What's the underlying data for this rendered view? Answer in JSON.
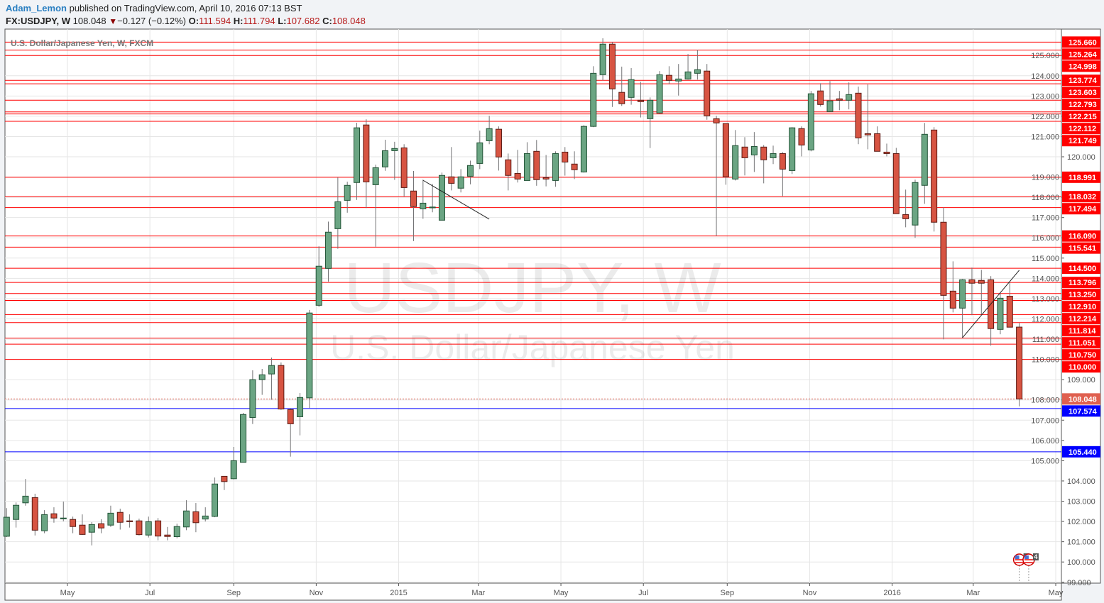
{
  "header": {
    "author": "Adam_Lemon",
    "published": "published on TradingView.com, April 10, 2016 07:13 BST",
    "symbol": "FX:USDJPY, W",
    "last": "108.048",
    "change": "−0.127 (−0.12%)",
    "o_label": "O:",
    "o": "111.594",
    "h_label": "H:",
    "h": "111.794",
    "l_label": "L:",
    "l": "107.682",
    "c_label": "C:",
    "c": "108.048",
    "down_icon": "triangle-down"
  },
  "legend": "U.S. Dollar/Japanese Yen, W, FXCM",
  "watermark": {
    "line1": "USDJPY, W",
    "line2": "U.S. Dollar/Japanese Yen"
  },
  "colors": {
    "up": "#6ba583",
    "up_border": "#225437",
    "down": "#d75442",
    "down_border": "#5b1a13",
    "wick": "#737375",
    "level": "#ff0000",
    "support": "#0000ff",
    "last_price": "#e0604f"
  },
  "chart_data": {
    "type": "candlestick",
    "interval": "weekly",
    "y_scale": "linear",
    "ylim": [
      98.9,
      125.9
    ],
    "y_ticks": [
      "99.000",
      "100.000",
      "101.000",
      "102.000",
      "103.000",
      "104.000",
      "105.000",
      "106.000",
      "107.000",
      "108.000",
      "109.000",
      "110.000",
      "111.000",
      "112.000",
      "113.000",
      "114.000",
      "115.000",
      "116.000",
      "117.000",
      "118.000",
      "119.000",
      "120.000",
      "121.000",
      "122.000",
      "123.000",
      "124.000",
      "125.000"
    ],
    "x_ticks": [
      {
        "date": "2014-05-01",
        "label": "May"
      },
      {
        "date": "2014-07-01",
        "label": "Jul"
      },
      {
        "date": "2014-09-01",
        "label": "Sep"
      },
      {
        "date": "2014-11-01",
        "label": "Nov"
      },
      {
        "date": "2015-01-01",
        "label": "2015"
      },
      {
        "date": "2015-03-01",
        "label": "Mar"
      },
      {
        "date": "2015-05-01",
        "label": "May"
      },
      {
        "date": "2015-07-01",
        "label": "Jul"
      },
      {
        "date": "2015-09-01",
        "label": "Sep"
      },
      {
        "date": "2015-11-01",
        "label": "Nov"
      },
      {
        "date": "2016-01-01",
        "label": "2016"
      },
      {
        "date": "2016-03-01",
        "label": "Mar"
      },
      {
        "date": "2016-05-01",
        "label": "May"
      }
    ],
    "grid": true,
    "columns": [
      "date",
      "open",
      "high",
      "low",
      "close"
    ],
    "candles": [
      [
        "2014-03-17",
        101.27,
        102.66,
        101.23,
        102.21
      ],
      [
        "2014-03-24",
        102.1,
        102.94,
        101.7,
        102.8
      ],
      [
        "2014-03-31",
        102.92,
        104.1,
        102.78,
        103.25
      ],
      [
        "2014-04-07",
        103.18,
        103.37,
        101.31,
        101.57
      ],
      [
        "2014-04-14",
        101.54,
        102.56,
        101.42,
        102.34
      ],
      [
        "2014-04-21",
        102.38,
        102.7,
        101.94,
        102.17
      ],
      [
        "2014-04-28",
        102.13,
        102.98,
        102.01,
        102.17
      ],
      [
        "2014-05-05",
        102.1,
        102.24,
        101.42,
        101.75
      ],
      [
        "2014-05-12",
        101.82,
        102.35,
        101.33,
        101.36
      ],
      [
        "2014-05-19",
        101.47,
        101.97,
        100.82,
        101.85
      ],
      [
        "2014-05-26",
        101.89,
        102.11,
        101.42,
        101.68
      ],
      [
        "2014-06-02",
        101.82,
        102.78,
        101.73,
        102.41
      ],
      [
        "2014-06-09",
        102.45,
        102.63,
        101.6,
        101.96
      ],
      [
        "2014-06-16",
        102.03,
        102.35,
        101.7,
        101.99
      ],
      [
        "2014-06-23",
        102.03,
        102.14,
        101.31,
        101.35
      ],
      [
        "2014-06-30",
        101.33,
        102.24,
        101.21,
        101.99
      ],
      [
        "2014-07-07",
        102.03,
        102.17,
        101.07,
        101.28
      ],
      [
        "2014-07-14",
        101.33,
        101.73,
        101.07,
        101.26
      ],
      [
        "2014-07-21",
        101.25,
        101.89,
        101.17,
        101.75
      ],
      [
        "2014-07-28",
        101.73,
        103.05,
        101.57,
        102.52
      ],
      [
        "2014-08-04",
        102.48,
        102.91,
        101.47,
        101.94
      ],
      [
        "2014-08-11",
        102.12,
        102.7,
        102.0,
        102.27
      ],
      [
        "2014-08-18",
        102.25,
        104.17,
        102.21,
        103.85
      ],
      [
        "2014-08-25",
        104.23,
        104.23,
        103.55,
        103.97
      ],
      [
        "2014-09-01",
        104.11,
        105.68,
        104.08,
        105.0
      ],
      [
        "2014-09-08",
        104.92,
        107.36,
        104.92,
        107.28
      ],
      [
        "2014-09-15",
        107.13,
        109.46,
        106.81,
        109.0
      ],
      [
        "2014-09-22",
        109.0,
        109.53,
        108.25,
        109.24
      ],
      [
        "2014-09-29",
        109.28,
        110.09,
        108.01,
        109.7
      ],
      [
        "2014-10-06",
        109.7,
        109.85,
        107.51,
        107.55
      ],
      [
        "2014-10-13",
        107.52,
        107.6,
        105.2,
        106.82
      ],
      [
        "2014-10-20",
        107.17,
        108.34,
        106.25,
        108.12
      ],
      [
        "2014-10-27",
        108.1,
        112.44,
        107.6,
        112.29
      ],
      [
        "2014-11-03",
        112.67,
        115.58,
        112.59,
        114.6
      ],
      [
        "2014-11-10",
        114.49,
        116.8,
        113.84,
        116.28
      ],
      [
        "2014-11-17",
        116.45,
        118.98,
        115.46,
        117.78
      ],
      [
        "2014-11-24",
        117.85,
        118.77,
        117.24,
        118.59
      ],
      [
        "2014-12-01",
        118.73,
        121.68,
        117.87,
        121.43
      ],
      [
        "2014-12-08",
        121.57,
        121.85,
        117.47,
        118.76
      ],
      [
        "2014-12-15",
        118.62,
        119.61,
        115.56,
        119.46
      ],
      [
        "2014-12-22",
        119.5,
        120.84,
        119.31,
        120.3
      ],
      [
        "2014-12-29",
        120.3,
        120.74,
        118.86,
        120.41
      ],
      [
        "2015-01-05",
        120.44,
        120.62,
        118.05,
        118.48
      ],
      [
        "2015-01-12",
        118.31,
        119.3,
        115.84,
        117.54
      ],
      [
        "2015-01-19",
        117.43,
        118.87,
        116.94,
        117.71
      ],
      [
        "2015-01-26",
        117.48,
        118.66,
        117.26,
        117.52
      ],
      [
        "2015-02-02",
        116.87,
        119.22,
        116.87,
        119.08
      ],
      [
        "2015-02-09",
        119.01,
        120.48,
        118.34,
        118.69
      ],
      [
        "2015-02-16",
        118.45,
        119.39,
        118.24,
        119.01
      ],
      [
        "2015-02-23",
        119.04,
        119.81,
        118.64,
        119.57
      ],
      [
        "2015-03-02",
        119.67,
        121.29,
        119.39,
        120.69
      ],
      [
        "2015-03-09",
        120.79,
        122.02,
        120.62,
        121.39
      ],
      [
        "2015-03-16",
        121.36,
        121.5,
        119.32,
        119.99
      ],
      [
        "2015-03-23",
        119.85,
        120.16,
        118.34,
        119.08
      ],
      [
        "2015-03-30",
        119.18,
        120.34,
        118.73,
        118.9
      ],
      [
        "2015-04-06",
        118.83,
        120.72,
        118.83,
        120.16
      ],
      [
        "2015-04-13",
        120.27,
        120.83,
        118.57,
        118.87
      ],
      [
        "2015-04-20",
        118.97,
        120.09,
        118.54,
        118.9
      ],
      [
        "2015-04-27",
        118.83,
        120.27,
        118.52,
        120.16
      ],
      [
        "2015-05-04",
        120.23,
        120.48,
        119.07,
        119.74
      ],
      [
        "2015-05-11",
        119.64,
        120.27,
        118.9,
        119.36
      ],
      [
        "2015-05-18",
        119.25,
        121.56,
        119.22,
        121.5
      ],
      [
        "2015-05-25",
        121.5,
        124.47,
        121.46,
        124.12
      ],
      [
        "2015-06-01",
        124.05,
        125.85,
        123.77,
        125.56
      ],
      [
        "2015-06-08",
        125.56,
        125.66,
        122.46,
        123.35
      ],
      [
        "2015-06-15",
        123.18,
        124.45,
        122.51,
        122.62
      ],
      [
        "2015-06-22",
        122.93,
        124.38,
        122.57,
        123.81
      ],
      [
        "2015-06-29",
        122.79,
        123.7,
        121.94,
        122.72
      ],
      [
        "2015-07-06",
        121.88,
        122.93,
        120.43,
        122.79
      ],
      [
        "2015-07-13",
        122.16,
        124.23,
        122.13,
        124.05
      ],
      [
        "2015-07-20",
        124.02,
        124.47,
        123.58,
        123.77
      ],
      [
        "2015-07-27",
        123.74,
        124.58,
        123.02,
        123.84
      ],
      [
        "2015-08-03",
        123.84,
        125.07,
        123.81,
        124.19
      ],
      [
        "2015-08-10",
        124.12,
        125.28,
        123.81,
        124.3
      ],
      [
        "2015-08-17",
        124.23,
        124.58,
        121.83,
        122.02
      ],
      [
        "2015-08-24",
        121.88,
        122.02,
        116.1,
        121.67
      ],
      [
        "2015-08-31",
        121.64,
        121.64,
        118.62,
        119.01
      ],
      [
        "2015-09-07",
        118.9,
        121.32,
        118.83,
        120.55
      ],
      [
        "2015-09-14",
        120.48,
        120.97,
        119.08,
        119.95
      ],
      [
        "2015-09-21",
        120.09,
        121.22,
        119.25,
        120.51
      ],
      [
        "2015-09-28",
        120.48,
        120.58,
        118.69,
        119.85
      ],
      [
        "2015-10-05",
        119.95,
        120.55,
        119.64,
        120.16
      ],
      [
        "2015-10-12",
        120.16,
        120.23,
        118.06,
        119.39
      ],
      [
        "2015-10-19",
        119.32,
        121.46,
        119.15,
        121.43
      ],
      [
        "2015-10-26",
        121.39,
        121.5,
        120.02,
        120.58
      ],
      [
        "2015-11-02",
        120.34,
        123.25,
        120.27,
        123.11
      ],
      [
        "2015-11-09",
        123.25,
        123.63,
        122.48,
        122.58
      ],
      [
        "2015-11-16",
        122.23,
        123.74,
        122.23,
        122.76
      ],
      [
        "2015-11-23",
        122.86,
        123.25,
        122.3,
        122.79
      ],
      [
        "2015-11-30",
        122.79,
        123.67,
        122.34,
        123.07
      ],
      [
        "2015-12-07",
        123.14,
        123.46,
        120.62,
        120.93
      ],
      [
        "2015-12-14",
        121.14,
        123.57,
        120.37,
        121.08
      ],
      [
        "2015-12-21",
        121.14,
        121.5,
        120.27,
        120.27
      ],
      [
        "2015-12-28",
        120.23,
        120.65,
        120.02,
        120.16
      ],
      [
        "2016-01-04",
        120.16,
        120.44,
        117.19,
        117.19
      ],
      [
        "2016-01-11",
        117.15,
        118.38,
        116.52,
        116.94
      ],
      [
        "2016-01-18",
        116.63,
        118.87,
        116.0,
        118.73
      ],
      [
        "2016-01-25",
        118.59,
        121.67,
        117.68,
        121.11
      ],
      [
        "2016-02-01",
        121.32,
        121.46,
        116.31,
        116.77
      ],
      [
        "2016-02-08",
        116.77,
        117.5,
        110.99,
        113.16
      ],
      [
        "2016-02-15",
        113.37,
        114.84,
        112.32,
        112.53
      ],
      [
        "2016-02-22",
        112.53,
        113.97,
        111.06,
        113.93
      ],
      [
        "2016-02-29",
        113.93,
        114.53,
        112.18,
        113.76
      ],
      [
        "2016-03-07",
        113.9,
        114.42,
        112.22,
        113.76
      ],
      [
        "2016-03-14",
        113.93,
        114.11,
        110.68,
        111.52
      ],
      [
        "2016-03-21",
        111.48,
        113.27,
        111.24,
        113.02
      ],
      [
        "2016-03-28",
        113.12,
        113.83,
        111.59,
        111.59
      ],
      [
        "2016-04-04",
        111.594,
        111.794,
        107.682,
        108.048
      ]
    ],
    "levels": [
      {
        "price": 125.66,
        "label": "125.660",
        "kind": "resistance"
      },
      {
        "price": 125.264,
        "label": "125.264",
        "kind": "resistance"
      },
      {
        "price": 124.998,
        "label": "124.998",
        "kind": "resistance"
      },
      {
        "price": 123.774,
        "label": "123.774",
        "kind": "resistance"
      },
      {
        "price": 123.603,
        "label": "123.603",
        "kind": "resistance"
      },
      {
        "price": 122.793,
        "label": "122.793",
        "kind": "resistance"
      },
      {
        "price": 122.215,
        "label": "122.215",
        "kind": "resistance"
      },
      {
        "price": 122.112,
        "label": "122.112",
        "kind": "resistance"
      },
      {
        "price": 121.749,
        "label": "121.749",
        "kind": "resistance"
      },
      {
        "price": 118.991,
        "label": "118.991",
        "kind": "resistance"
      },
      {
        "price": 118.032,
        "label": "118.032",
        "kind": "resistance"
      },
      {
        "price": 117.494,
        "label": "117.494",
        "kind": "resistance"
      },
      {
        "price": 116.09,
        "label": "116.090",
        "kind": "resistance"
      },
      {
        "price": 115.541,
        "label": "115.541",
        "kind": "resistance"
      },
      {
        "price": 114.5,
        "label": "114.500",
        "kind": "resistance"
      },
      {
        "price": 113.796,
        "label": "113.796",
        "kind": "resistance"
      },
      {
        "price": 113.25,
        "label": "113.250",
        "kind": "resistance"
      },
      {
        "price": 112.91,
        "label": "112.910",
        "kind": "resistance"
      },
      {
        "price": 112.214,
        "label": "112.214",
        "kind": "resistance"
      },
      {
        "price": 111.814,
        "label": "111.814",
        "kind": "resistance"
      },
      {
        "price": 111.051,
        "label": "111.051",
        "kind": "resistance"
      },
      {
        "price": 110.75,
        "label": "110.750",
        "kind": "resistance"
      },
      {
        "price": 110.0,
        "label": "110.000",
        "kind": "resistance"
      },
      {
        "price": 108.048,
        "label": "108.048",
        "kind": "last"
      },
      {
        "price": 107.574,
        "label": "107.574",
        "kind": "support"
      },
      {
        "price": 105.44,
        "label": "105.440",
        "kind": "support"
      }
    ],
    "trendlines": [
      {
        "from": [
          "2015-01-19",
          118.84
        ],
        "to": [
          "2015-03-09",
          116.92
        ]
      },
      {
        "from": [
          "2016-02-22",
          111.07
        ],
        "to": [
          "2016-04-04",
          114.4
        ]
      }
    ],
    "events": [
      {
        "date": "2016-04-04",
        "badge": "3",
        "icon": "us-flag"
      },
      {
        "date": "2016-04-11",
        "badge": "4",
        "icon": "us-flag"
      }
    ]
  }
}
